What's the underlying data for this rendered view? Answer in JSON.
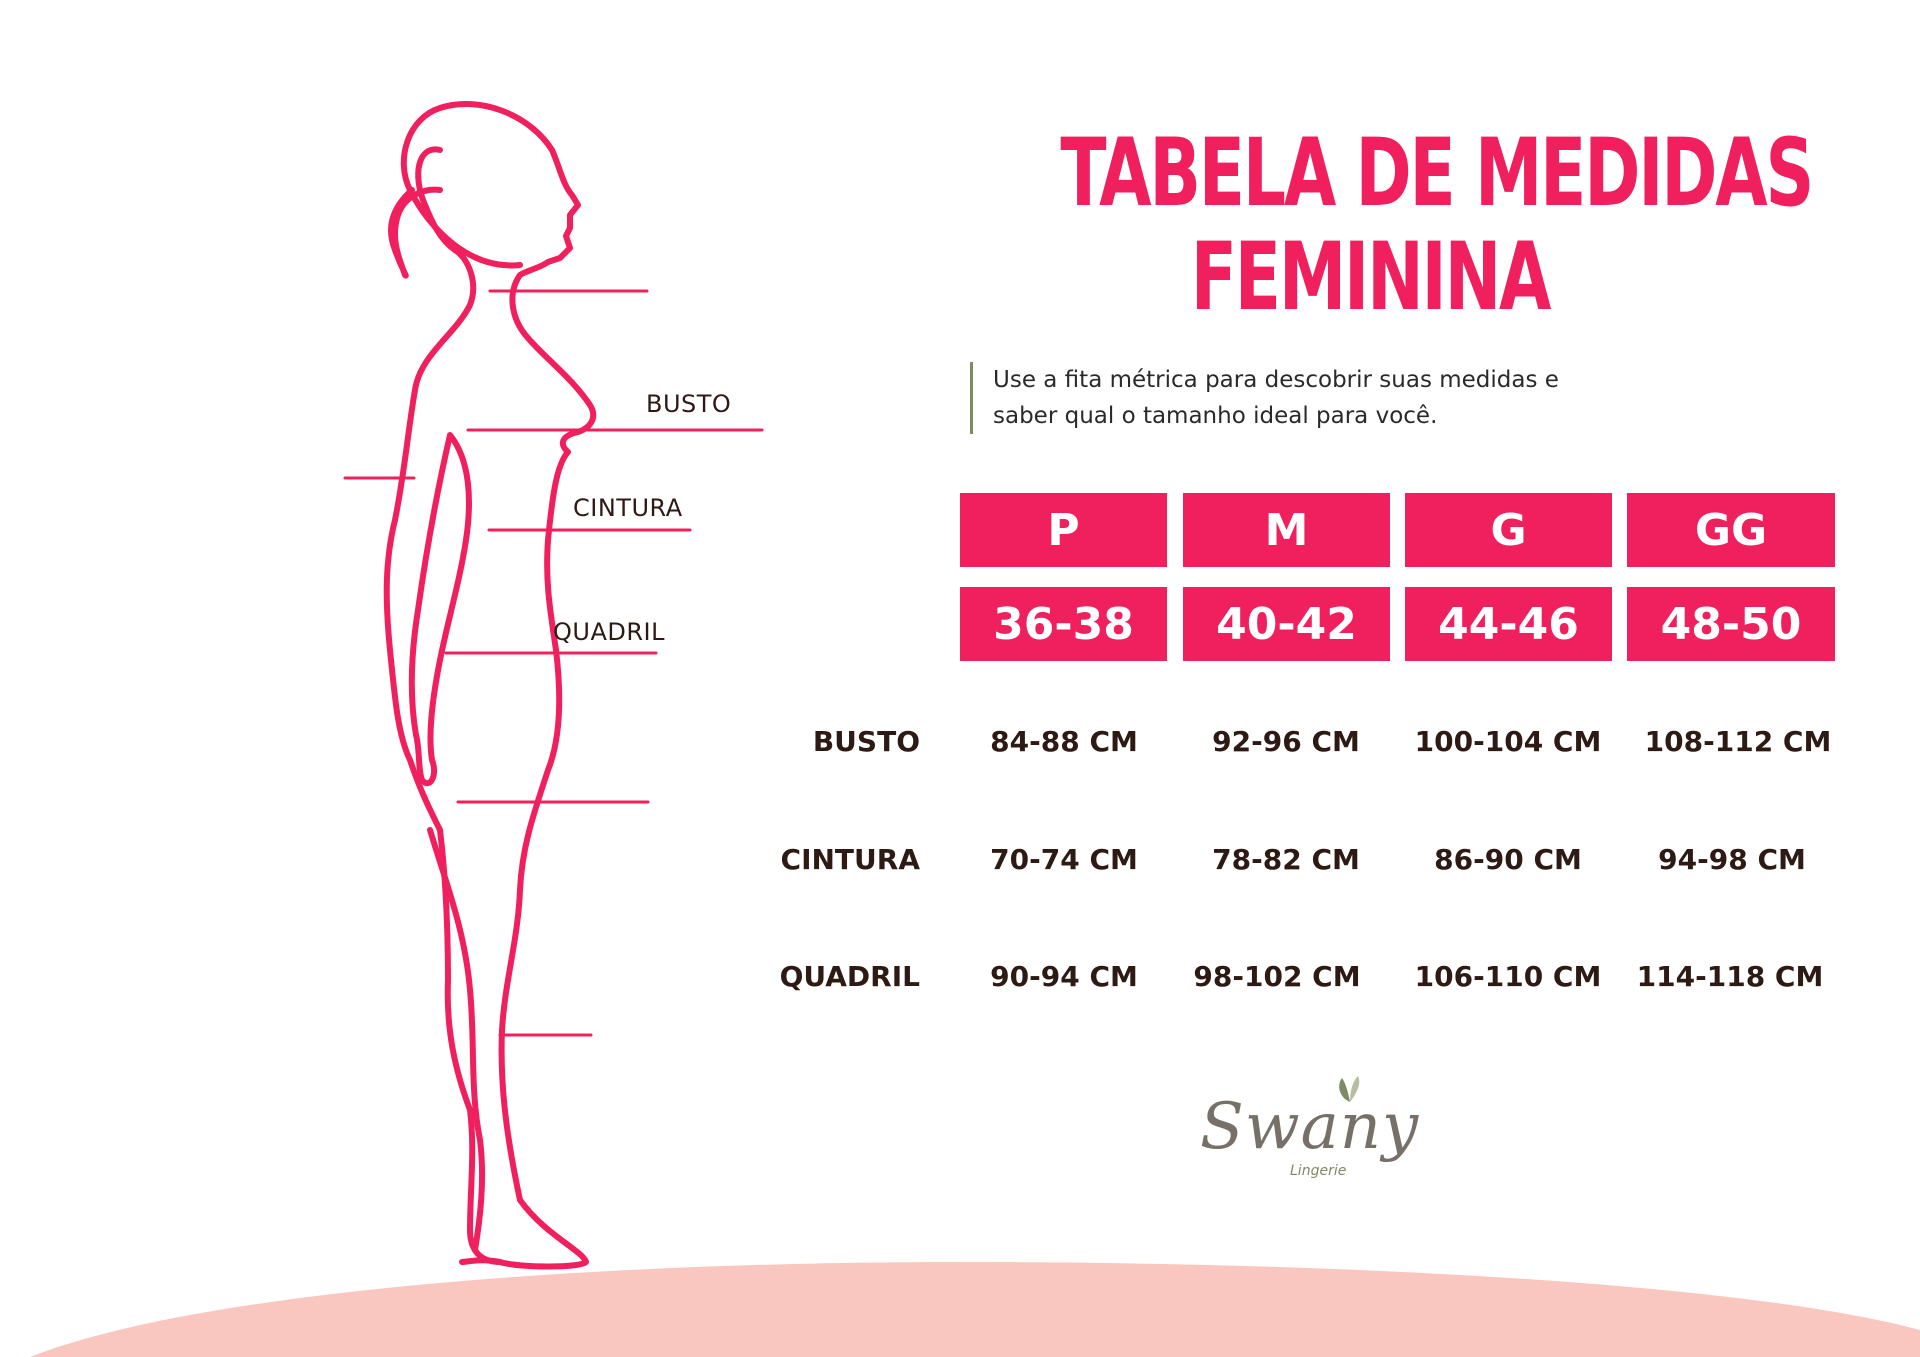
{
  "title": {
    "line1": "TABELA DE MEDIDAS",
    "line2": "FEMININA"
  },
  "intro": {
    "line1": "Use a fita métrica para descobrir suas medidas e",
    "line2": "saber qual o tamanho ideal para você."
  },
  "figure_labels": {
    "busto": "BUSTO",
    "cintura": "CINTURA",
    "quadril": "QUADRIL"
  },
  "sizes": [
    {
      "letter": "P",
      "range": "36-38"
    },
    {
      "letter": "M",
      "range": "40-42"
    },
    {
      "letter": "G",
      "range": "44-46"
    },
    {
      "letter": "GG",
      "range": "48-50"
    }
  ],
  "rows": [
    {
      "label": "BUSTO",
      "values": [
        "84-88 CM",
        "92-96 CM",
        "100-104 CM",
        "108-112 CM"
      ]
    },
    {
      "label": "CINTURA",
      "values": [
        "70-74 CM",
        "78-82 CM",
        "86-90 CM",
        "94-98 CM"
      ]
    },
    {
      "label": "QUADRIL",
      "values": [
        "90-94 CM",
        "98-102 CM",
        "106-110 CM",
        "114-118 CM"
      ]
    }
  ],
  "logo": {
    "name": "Swany",
    "sub": "Lingerie"
  },
  "colors": {
    "accent": "#f0205e",
    "text": "#2e1a14",
    "ground": "#f9c7bf",
    "logo_green": "#7e8a63"
  }
}
